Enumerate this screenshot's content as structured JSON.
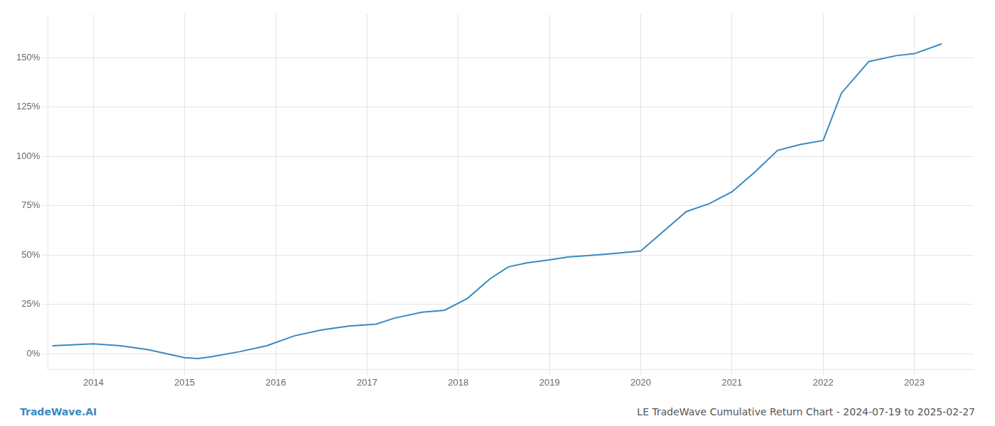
{
  "chart_data": {
    "type": "line",
    "x": [
      2013.55,
      2014.0,
      2014.3,
      2014.6,
      2015.0,
      2015.15,
      2015.3,
      2015.6,
      2015.9,
      2016.2,
      2016.5,
      2016.8,
      2017.1,
      2017.3,
      2017.6,
      2017.85,
      2018.1,
      2018.35,
      2018.55,
      2018.75,
      2019.0,
      2019.2,
      2019.5,
      2019.75,
      2020.0,
      2020.25,
      2020.5,
      2020.75,
      2021.0,
      2021.25,
      2021.5,
      2021.75,
      2022.0,
      2022.2,
      2022.5,
      2022.8,
      2023.0,
      2023.3
    ],
    "values": [
      0.04,
      0.05,
      0.04,
      0.02,
      -0.02,
      -0.025,
      -0.015,
      0.01,
      0.04,
      0.09,
      0.12,
      0.14,
      0.15,
      0.18,
      0.21,
      0.22,
      0.28,
      0.38,
      0.44,
      0.46,
      0.475,
      0.49,
      0.5,
      0.51,
      0.52,
      0.62,
      0.72,
      0.76,
      0.82,
      0.92,
      1.03,
      1.06,
      1.08,
      1.32,
      1.48,
      1.51,
      1.52,
      1.57
    ],
    "color": "#3a8abf",
    "xlim": [
      2013.5,
      2023.65
    ],
    "ylim": [
      -0.08,
      1.72
    ],
    "xticks": [
      2014,
      2015,
      2016,
      2017,
      2018,
      2019,
      2020,
      2021,
      2022,
      2023
    ],
    "yticks": [
      {
        "value": 0.0,
        "label": "0%"
      },
      {
        "value": 0.25,
        "label": "25%"
      },
      {
        "value": 0.5,
        "label": "50%"
      },
      {
        "value": 0.75,
        "label": "75%"
      },
      {
        "value": 1.0,
        "label": "100%"
      },
      {
        "value": 1.25,
        "label": "125%"
      },
      {
        "value": 1.5,
        "label": "150%"
      }
    ],
    "grid": true,
    "annotations": [
      {
        "text": "TradeWave.AI",
        "color": "#3a8abf"
      },
      {
        "text": "LE TradeWave Cumulative Return Chart - 2024-07-19 to 2025-02-27",
        "color": "#555555"
      }
    ]
  }
}
